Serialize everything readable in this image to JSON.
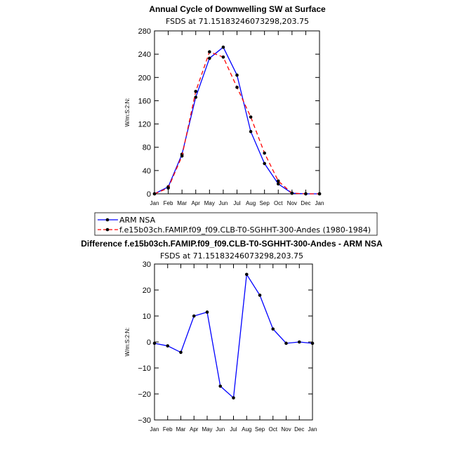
{
  "chart_data": [
    {
      "type": "line",
      "title": "Annual Cycle of Downwelling SW at Surface",
      "subtitle": "FSDS at 71.15183246073298,203.75",
      "xlabel": "",
      "ylabel": "W/m:S:2:N:",
      "categories": [
        "Jan",
        "Feb",
        "Mar",
        "Apr",
        "May",
        "Jun",
        "Jul",
        "Aug",
        "Sep",
        "Oct",
        "Nov",
        "Dec",
        "Jan"
      ],
      "ylim": [
        0,
        280
      ],
      "yticks": [
        "0",
        "40",
        "80",
        "120",
        "160",
        "200",
        "240",
        "280"
      ],
      "grid": false,
      "series": [
        {
          "name": "ARM NSA",
          "color": "#0000ff",
          "dash": "solid",
          "values": [
            0,
            12,
            68,
            166,
            233,
            252,
            204,
            107,
            52,
            17,
            1,
            0,
            0
          ]
        },
        {
          "name": "f.e15b03ch.FAMIP.f09_f09.CLB-T0-SGHHT-300-Andes (1980-1984)",
          "color": "#ff0000",
          "dash": "dashed",
          "values": [
            0,
            10,
            65,
            176,
            244,
            235,
            183,
            132,
            70,
            22,
            1,
            0,
            0
          ]
        }
      ]
    },
    {
      "type": "line",
      "title": "Difference f.e15b03ch.FAMIP.f09_f09.CLB-T0-SGHHT-300-Andes - ARM NSA",
      "subtitle": "FSDS at 71.15183246073298,203.75",
      "xlabel": "",
      "ylabel": "W/m:S:2:N:",
      "categories": [
        "Jan",
        "Feb",
        "Mar",
        "Apr",
        "May",
        "Jun",
        "Jul",
        "Aug",
        "Sep",
        "Oct",
        "Nov",
        "Dec",
        "Jan"
      ],
      "ylim": [
        -30,
        30
      ],
      "yticks": [
        "−30",
        "−20",
        "−10",
        "0",
        "10",
        "20",
        "30"
      ],
      "grid": false,
      "series": [
        {
          "name": "Difference",
          "color": "#0000ff",
          "dash": "solid",
          "values": [
            -0.5,
            -1.5,
            -4,
            10,
            11.5,
            -17,
            -21.5,
            26,
            18,
            5,
            -0.5,
            0,
            -0.5
          ]
        }
      ]
    }
  ]
}
